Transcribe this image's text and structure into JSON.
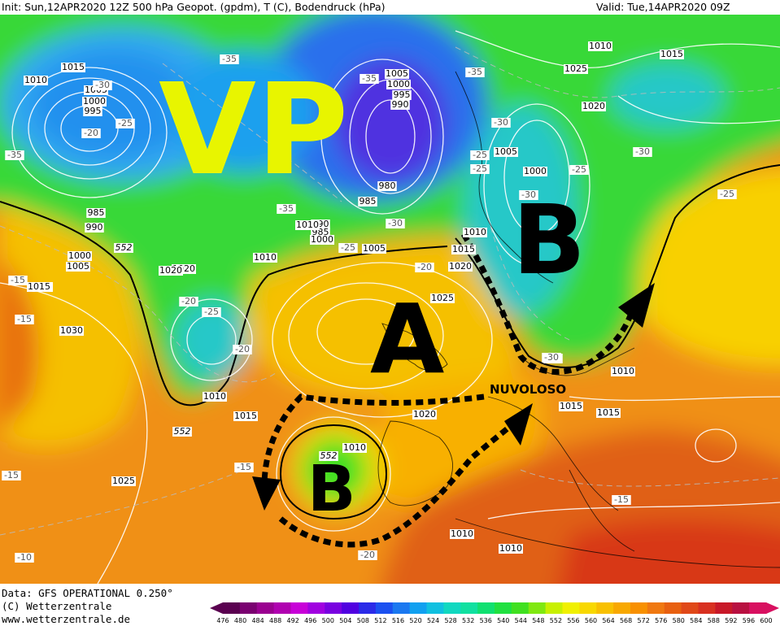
{
  "header": {
    "init_text": "Init: Sun,12APR2020 12Z 500 hPa Geopot. (gpdm), T (C), Bodendruck (hPa)",
    "valid_text": "Valid: Tue,14APR2020 09Z"
  },
  "footer": {
    "data_line": "Data: GFS OPERATIONAL 0.250°",
    "copyright_line": "(C) Wetterzentrale",
    "url_line": "www.wetterzentrale.de"
  },
  "annotations": {
    "vp_label": "VP",
    "a_label": "A",
    "b_north_label": "B",
    "b_south_label": "B",
    "cloudy_label": "NUVOLOSO"
  },
  "colors": {
    "vp_label": "#e8f500",
    "system_letters": "#000000",
    "arrows": "#000000"
  },
  "isobar_labels": [
    {
      "id": "iso-1015-a",
      "text": "1015"
    },
    {
      "id": "iso-1010-a",
      "text": "1010"
    },
    {
      "id": "iso-1005-a",
      "text": "1005"
    },
    {
      "id": "iso-1000-a",
      "text": "1000"
    },
    {
      "id": "iso-995-a",
      "text": "995"
    },
    {
      "id": "iso-1005-b",
      "text": "1005"
    },
    {
      "id": "iso-1000-b",
      "text": "1000"
    },
    {
      "id": "iso-995-b",
      "text": "995"
    },
    {
      "id": "iso-990-a",
      "text": "990"
    },
    {
      "id": "iso-980",
      "text": "980"
    },
    {
      "id": "iso-985-a",
      "text": "985"
    },
    {
      "id": "iso-985-b",
      "text": "985"
    },
    {
      "id": "iso-990-b",
      "text": "990"
    },
    {
      "id": "iso-990-c",
      "text": "990"
    },
    {
      "id": "iso-985-c",
      "text": "985"
    },
    {
      "id": "iso-1000-c",
      "text": "1000"
    },
    {
      "id": "iso-1005-c",
      "text": "1005"
    },
    {
      "id": "iso-1010-b",
      "text": "1010"
    },
    {
      "id": "iso-1000-d",
      "text": "1000"
    },
    {
      "id": "iso-1005-d",
      "text": "1005"
    },
    {
      "id": "iso-1015-b",
      "text": "1015"
    },
    {
      "id": "iso-1020-a",
      "text": "1020"
    },
    {
      "id": "iso-1030",
      "text": "1030"
    },
    {
      "id": "iso-1010-c",
      "text": "1010"
    },
    {
      "id": "iso-1015-c",
      "text": "1015"
    },
    {
      "id": "iso-1025-a",
      "text": "1025"
    },
    {
      "id": "iso-1020-b",
      "text": "1020"
    },
    {
      "id": "iso-1010-d",
      "text": "1010"
    },
    {
      "id": "iso-1015-d",
      "text": "1015"
    },
    {
      "id": "iso-1020-c",
      "text": "1020"
    },
    {
      "id": "iso-1025-b",
      "text": "1025"
    },
    {
      "id": "iso-1020-d",
      "text": "1020"
    },
    {
      "id": "iso-1015-e",
      "text": "1015"
    },
    {
      "id": "iso-1010-e",
      "text": "1010"
    },
    {
      "id": "iso-1010-f",
      "text": "1010"
    },
    {
      "id": "iso-1010-g",
      "text": "1010"
    },
    {
      "id": "iso-1010-h",
      "text": "1010"
    },
    {
      "id": "iso-1010-i",
      "text": "1010"
    },
    {
      "id": "iso-1025-c",
      "text": "1025"
    },
    {
      "id": "iso-1020-e",
      "text": "1020"
    },
    {
      "id": "iso-1015-f",
      "text": "1015"
    },
    {
      "id": "iso-1015-g",
      "text": "1015"
    },
    {
      "id": "iso-1005-e",
      "text": "1005"
    },
    {
      "id": "iso-1000-e",
      "text": "1000"
    },
    {
      "id": "iso-1015-h",
      "text": "1015"
    },
    {
      "id": "iso-1010-j",
      "text": "1010"
    },
    {
      "id": "iso-1020-f",
      "text": "1020"
    },
    {
      "id": "iso-1010-k",
      "text": "1010"
    }
  ],
  "temp_labels": [
    {
      "id": "t-1",
      "text": "-35"
    },
    {
      "id": "t-2",
      "text": "-30"
    },
    {
      "id": "t-3",
      "text": "-25"
    },
    {
      "id": "t-4",
      "text": "-20"
    },
    {
      "id": "t-5",
      "text": "-35"
    },
    {
      "id": "t-6",
      "text": "-35"
    },
    {
      "id": "t-7",
      "text": "-35"
    },
    {
      "id": "t-8",
      "text": "-30"
    },
    {
      "id": "t-9",
      "text": "-25"
    },
    {
      "id": "t-10",
      "text": "-20"
    },
    {
      "id": "t-11",
      "text": "-15"
    },
    {
      "id": "t-12",
      "text": "-15"
    },
    {
      "id": "t-13",
      "text": "-20"
    },
    {
      "id": "t-14",
      "text": "-25"
    },
    {
      "id": "t-15",
      "text": "-20"
    },
    {
      "id": "t-16",
      "text": "-35"
    },
    {
      "id": "t-17",
      "text": "-30"
    },
    {
      "id": "t-18",
      "text": "-25"
    },
    {
      "id": "t-19",
      "text": "-30"
    },
    {
      "id": "t-20",
      "text": "-25"
    },
    {
      "id": "t-21",
      "text": "-20"
    },
    {
      "id": "t-22",
      "text": "-30"
    },
    {
      "id": "t-23",
      "text": "-25"
    },
    {
      "id": "t-24",
      "text": "-15"
    },
    {
      "id": "t-25",
      "text": "-15"
    },
    {
      "id": "t-26",
      "text": "-10"
    },
    {
      "id": "t-27",
      "text": "-15"
    },
    {
      "id": "t-28",
      "text": "-10"
    },
    {
      "id": "t-29",
      "text": "-20"
    },
    {
      "id": "t-30",
      "text": "-30"
    },
    {
      "id": "t-31",
      "text": "-25"
    }
  ],
  "geopot_labels": [
    {
      "id": "g-1",
      "text": "552"
    },
    {
      "id": "g-2",
      "text": "552"
    },
    {
      "id": "g-3",
      "text": "552"
    },
    {
      "id": "g-4",
      "text": "552"
    },
    {
      "id": "g-5",
      "text": "552"
    }
  ],
  "colorbar": {
    "ticks": [
      "476",
      "480",
      "484",
      "488",
      "492",
      "496",
      "500",
      "504",
      "508",
      "512",
      "516",
      "520",
      "524",
      "528",
      "532",
      "536",
      "540",
      "544",
      "548",
      "552",
      "556",
      "560",
      "564",
      "568",
      "572",
      "576",
      "580",
      "584",
      "588",
      "592",
      "596",
      "600"
    ],
    "colors": [
      "#5a0050",
      "#7a0070",
      "#9a0090",
      "#b000b0",
      "#c800d8",
      "#a000e0",
      "#7800e0",
      "#5000e0",
      "#2a2ae8",
      "#1a50f0",
      "#1a78f0",
      "#10a0f0",
      "#10c0e0",
      "#10d8c0",
      "#10e0a0",
      "#10e070",
      "#20e040",
      "#40e020",
      "#80e810",
      "#c8f000",
      "#f0f000",
      "#f8d800",
      "#f8c000",
      "#f8a800",
      "#f89000",
      "#f07810",
      "#e86010",
      "#e04818",
      "#d83020",
      "#c81828",
      "#b81040",
      "#d81060"
    ]
  }
}
